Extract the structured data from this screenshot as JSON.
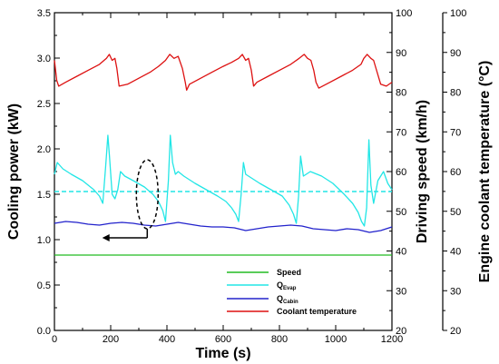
{
  "chart_data": {
    "type": "line",
    "xlabel": "Time (s)",
    "ylabel_left": "Cooling power (kW)",
    "ylabel_right1": "Driving speed (km/h)",
    "ylabel_right2": "Engine coolant temperature (°C)",
    "xlim": [
      0,
      1200
    ],
    "ylim_left": [
      0.0,
      3.5
    ],
    "ylim_right1": [
      20,
      100
    ],
    "ylim_right2": [
      20,
      100
    ],
    "x_ticks": [
      "0",
      "200",
      "400",
      "600",
      "800",
      "1000",
      "1200"
    ],
    "y_left_ticks": [
      "0.0",
      "0.5",
      "1.0",
      "1.5",
      "2.0",
      "2.5",
      "3.0",
      "3.5"
    ],
    "y_right1_ticks": [
      "20",
      "30",
      "40",
      "50",
      "60",
      "70",
      "80",
      "90",
      "100"
    ],
    "y_right2_ticks": [
      "20",
      "30",
      "40",
      "50",
      "60",
      "70",
      "80",
      "90",
      "100"
    ],
    "series": [
      {
        "name": "Speed",
        "axis": "left",
        "color": "#22bb22",
        "x": [
          0,
          200,
          400,
          600,
          800,
          1000,
          1200
        ],
        "y": [
          0.83,
          0.83,
          0.83,
          0.83,
          0.83,
          0.83,
          0.83
        ]
      },
      {
        "name": "QEvap",
        "name_main": "Q",
        "name_sub": "Evap",
        "axis": "left",
        "color": "#22e6e6",
        "x": [
          0,
          10,
          30,
          60,
          100,
          140,
          160,
          172,
          182,
          190,
          196,
          205,
          215,
          225,
          235,
          250,
          280,
          320,
          350,
          370,
          385,
          395,
          405,
          412,
          420,
          430,
          440,
          460,
          500,
          540,
          580,
          610,
          630,
          645,
          655,
          664,
          672,
          680,
          700,
          730,
          770,
          810,
          835,
          850,
          860,
          868,
          875,
          885,
          910,
          950,
          990,
          1030,
          1060,
          1080,
          1092,
          1102,
          1110,
          1118,
          1125,
          1135,
          1150,
          1170,
          1185,
          1200
        ],
        "y": [
          1.72,
          1.85,
          1.78,
          1.72,
          1.65,
          1.55,
          1.48,
          1.4,
          1.8,
          2.15,
          1.9,
          1.5,
          1.45,
          1.55,
          1.75,
          1.7,
          1.65,
          1.58,
          1.5,
          1.42,
          1.32,
          1.2,
          1.65,
          2.15,
          1.85,
          1.72,
          1.75,
          1.7,
          1.62,
          1.55,
          1.48,
          1.42,
          1.35,
          1.28,
          1.2,
          1.5,
          1.85,
          1.72,
          1.68,
          1.62,
          1.55,
          1.48,
          1.38,
          1.28,
          1.18,
          1.48,
          1.92,
          1.7,
          1.75,
          1.7,
          1.62,
          1.5,
          1.4,
          1.3,
          1.2,
          1.15,
          1.35,
          2.1,
          1.6,
          1.4,
          1.65,
          1.75,
          1.62,
          1.55
        ]
      },
      {
        "name": "QCabin",
        "name_main": "Q",
        "name_sub": "Cabin",
        "axis": "left",
        "color": "#2222cc",
        "x": [
          0,
          40,
          80,
          120,
          160,
          200,
          240,
          280,
          320,
          360,
          400,
          440,
          480,
          520,
          560,
          600,
          640,
          680,
          720,
          760,
          800,
          840,
          880,
          920,
          960,
          1000,
          1040,
          1080,
          1120,
          1160,
          1200
        ],
        "y": [
          1.18,
          1.2,
          1.19,
          1.17,
          1.16,
          1.18,
          1.19,
          1.18,
          1.16,
          1.15,
          1.17,
          1.19,
          1.17,
          1.15,
          1.14,
          1.14,
          1.13,
          1.1,
          1.12,
          1.14,
          1.15,
          1.16,
          1.15,
          1.12,
          1.11,
          1.1,
          1.12,
          1.11,
          1.08,
          1.1,
          1.14
        ]
      },
      {
        "name": "Coolant temperature",
        "axis": "right2",
        "color": "#dd1111",
        "x": [
          0,
          8,
          15,
          40,
          80,
          120,
          160,
          185,
          195,
          205,
          215,
          222,
          230,
          260,
          300,
          340,
          370,
          395,
          410,
          425,
          440,
          455,
          465,
          470,
          480,
          520,
          560,
          600,
          630,
          655,
          668,
          680,
          690,
          700,
          708,
          720,
          760,
          800,
          840,
          870,
          888,
          900,
          912,
          922,
          930,
          940,
          980,
          1020,
          1060,
          1090,
          1100,
          1112,
          1125,
          1135,
          1160,
          1180,
          1200
        ],
        "y": [
          88.0,
          83.0,
          81.5,
          82.5,
          84.0,
          85.5,
          87.0,
          88.5,
          89.5,
          88.0,
          88.5,
          86.0,
          81.5,
          82.0,
          83.5,
          85.0,
          86.5,
          88.0,
          89.5,
          88.5,
          89.0,
          86.0,
          82.5,
          80.5,
          82.0,
          83.5,
          85.0,
          86.5,
          87.5,
          88.5,
          89.5,
          88.0,
          88.5,
          85.5,
          81.5,
          82.5,
          84.0,
          85.5,
          87.0,
          88.5,
          89.5,
          88.5,
          88.0,
          85.5,
          82.5,
          81.0,
          82.5,
          84.0,
          85.5,
          87.0,
          88.5,
          89.5,
          88.5,
          88.0,
          82.0,
          81.5,
          82.5
        ]
      }
    ],
    "reference_line": {
      "axis": "left",
      "y": 1.53,
      "color": "#22e6e6",
      "style": "dashed"
    },
    "annotation": {
      "type": "ellipse-with-arrow",
      "center_x": 330,
      "center_y": 1.5,
      "arrow_to_x": 170,
      "arrow_y": 1.02
    },
    "legend": {
      "placement": "bottom-center"
    },
    "grid": false
  }
}
